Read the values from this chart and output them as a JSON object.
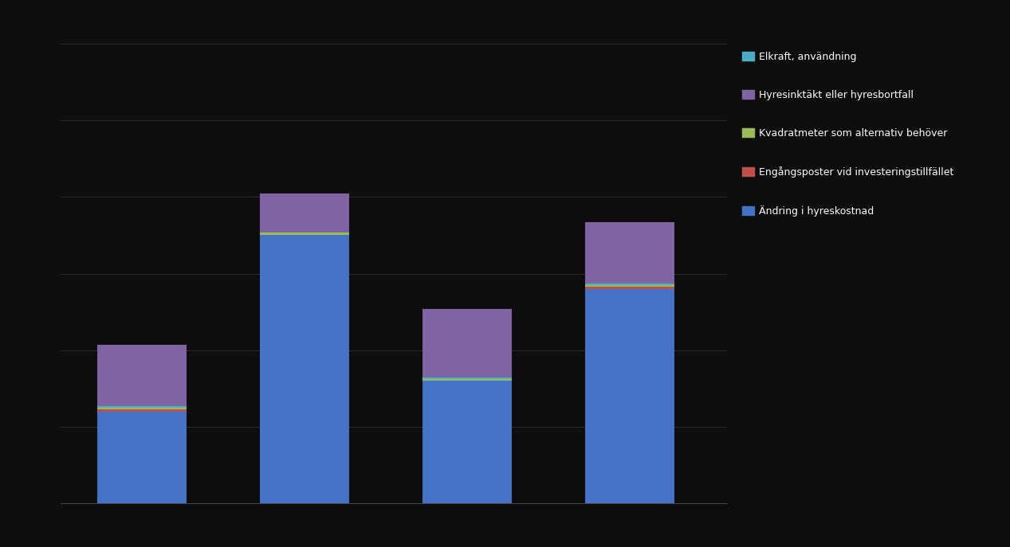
{
  "bar_positions": [
    1,
    2,
    3,
    4
  ],
  "bar_width": 0.55,
  "segments": {
    "blue": [
      120,
      350,
      160,
      280
    ],
    "red": [
      3,
      0,
      0,
      3
    ],
    "yellow_green": [
      2,
      4,
      2,
      2
    ],
    "purple": [
      80,
      50,
      90,
      80
    ],
    "cyan": [
      2,
      0,
      2,
      2
    ]
  },
  "colors": {
    "blue": "#4472C4",
    "red": "#C0504D",
    "yellow_green": "#9BBB59",
    "purple": "#8064A2",
    "cyan": "#4BACC6"
  },
  "legend_labels": {
    "cyan": "Elkraft, användning",
    "purple": "Hyresinktäkt eller hyresbortfall",
    "yellow_green": "Kvadratmeter som alternativ behöver",
    "red": "Engångsposter vid investeringstillfället",
    "blue": "Ändring i hyreskostnad"
  },
  "background_color": "#0d0d0d",
  "plot_bg_color": "#0d0d0d",
  "ylim": [
    0,
    600
  ],
  "ytick_count": 7,
  "grid_color": "#2a2a2a",
  "xlim": [
    0.5,
    4.6
  ]
}
